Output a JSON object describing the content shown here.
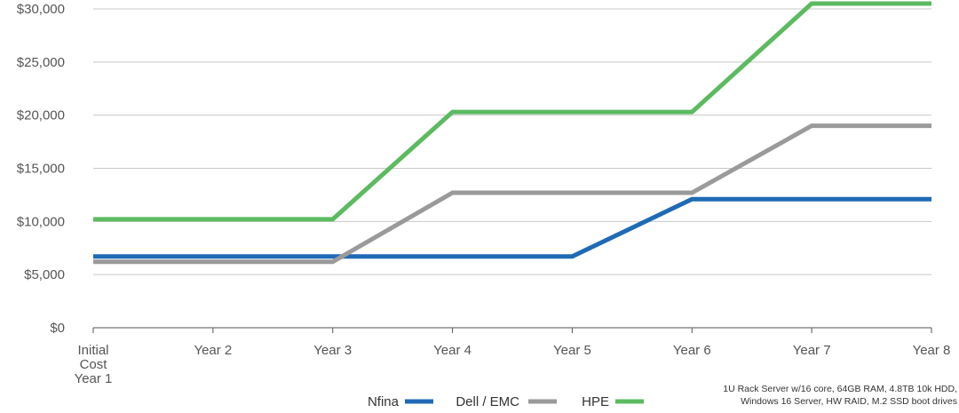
{
  "chart_data": {
    "type": "line",
    "title": "",
    "xlabel": "",
    "ylabel": "",
    "categories": [
      [
        "Initial",
        "Cost",
        "Year 1"
      ],
      "Year 2",
      "Year 3",
      "Year 4",
      "Year 5",
      "Year 6",
      "Year 7",
      "Year 8"
    ],
    "ylim": [
      0,
      30000
    ],
    "yticks": [
      0,
      5000,
      10000,
      15000,
      20000,
      25000,
      30000
    ],
    "ytick_labels": [
      "$0",
      "$5,000",
      "$10,000",
      "$15,000",
      "$20,000",
      "$25,000",
      "$30,000"
    ],
    "grid": true,
    "legend_position": "bottom",
    "series": [
      {
        "name": "Nfina",
        "color": "#1f6ab5",
        "values": [
          6700,
          6700,
          6700,
          6700,
          6700,
          12100,
          12100,
          12100
        ]
      },
      {
        "name": "Dell / EMC",
        "color": "#9a9a9a",
        "values": [
          6200,
          6200,
          6200,
          12700,
          12700,
          12700,
          19000,
          19000
        ]
      },
      {
        "name": "HPE",
        "color": "#5cba60",
        "values": [
          10200,
          10200,
          10200,
          20300,
          20300,
          20300,
          30500,
          30500
        ]
      }
    ]
  },
  "footnote": {
    "line1": "1U Rack Server w/16 core, 64GB RAM, 4.8TB 10k HDD,",
    "line2": "Windows 16 Server, HW RAID, M.2 SSD boot drives"
  }
}
